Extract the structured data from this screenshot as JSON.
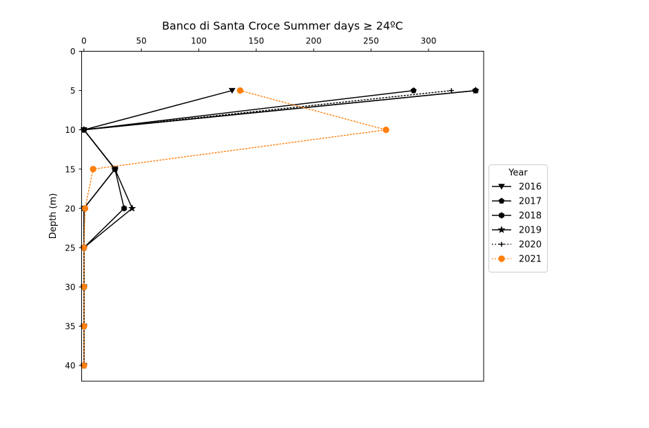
{
  "chart_data": {
    "type": "line",
    "title": "Banco di Santa Croce Summer days ≥ 24ºC",
    "xlabel": "",
    "ylabel": "Depth (m)",
    "x_axis_position": "top",
    "y_inverted": true,
    "xlim": [
      -2,
      348
    ],
    "ylim": [
      0,
      42
    ],
    "xticks": [
      0,
      50,
      100,
      150,
      200,
      250,
      300
    ],
    "yticks": [
      0,
      5,
      10,
      15,
      20,
      25,
      30,
      35,
      40
    ],
    "grid": false,
    "legend": {
      "title": "Year",
      "placement": "center-right-outside"
    },
    "series": [
      {
        "name": "2016",
        "color": "#000000",
        "dash": "solid",
        "marker": "triangle-down",
        "points": [
          [
            129,
            5
          ],
          [
            0,
            10
          ],
          [
            27,
            15
          ],
          [
            0,
            20
          ],
          [
            0,
            25
          ],
          [
            0,
            30
          ],
          [
            0,
            35
          ],
          [
            0,
            40
          ]
        ]
      },
      {
        "name": "2017",
        "color": "#000000",
        "dash": "solid",
        "marker": "pentagon",
        "points": [
          [
            287,
            5
          ],
          [
            0,
            10
          ],
          [
            27,
            15
          ],
          [
            0,
            20
          ],
          [
            0,
            25
          ],
          [
            0,
            30
          ],
          [
            0,
            35
          ],
          [
            0,
            40
          ]
        ]
      },
      {
        "name": "2018",
        "color": "#000000",
        "dash": "solid",
        "marker": "hexagon",
        "points": [
          [
            341,
            5
          ],
          [
            0,
            10
          ],
          [
            27,
            15
          ],
          [
            35,
            20
          ],
          [
            0,
            25
          ],
          [
            0,
            30
          ],
          [
            0,
            35
          ],
          [
            0,
            40
          ]
        ]
      },
      {
        "name": "2019",
        "color": "#000000",
        "dash": "solid",
        "marker": "star",
        "points": [
          [
            341,
            5
          ],
          [
            0,
            10
          ],
          [
            27,
            15
          ],
          [
            42,
            20
          ],
          [
            0,
            25
          ],
          [
            0,
            30
          ],
          [
            0,
            35
          ],
          [
            0,
            40
          ]
        ]
      },
      {
        "name": "2020",
        "color": "#000000",
        "dash": "dotted",
        "marker": "plus",
        "points": [
          [
            320,
            5
          ],
          [
            0,
            10
          ],
          [
            27,
            15
          ],
          [
            0,
            20
          ],
          [
            0,
            25
          ],
          [
            0,
            30
          ],
          [
            0,
            35
          ],
          [
            0,
            40
          ]
        ]
      },
      {
        "name": "2021",
        "color": "#ff7f0e",
        "dash": "dotted",
        "marker": "circle",
        "points": [
          [
            136,
            5
          ],
          [
            263,
            10
          ],
          [
            8,
            15
          ],
          [
            1,
            20
          ],
          [
            0,
            25
          ],
          [
            0,
            30
          ],
          [
            0,
            35
          ],
          [
            0,
            40
          ]
        ]
      }
    ]
  }
}
